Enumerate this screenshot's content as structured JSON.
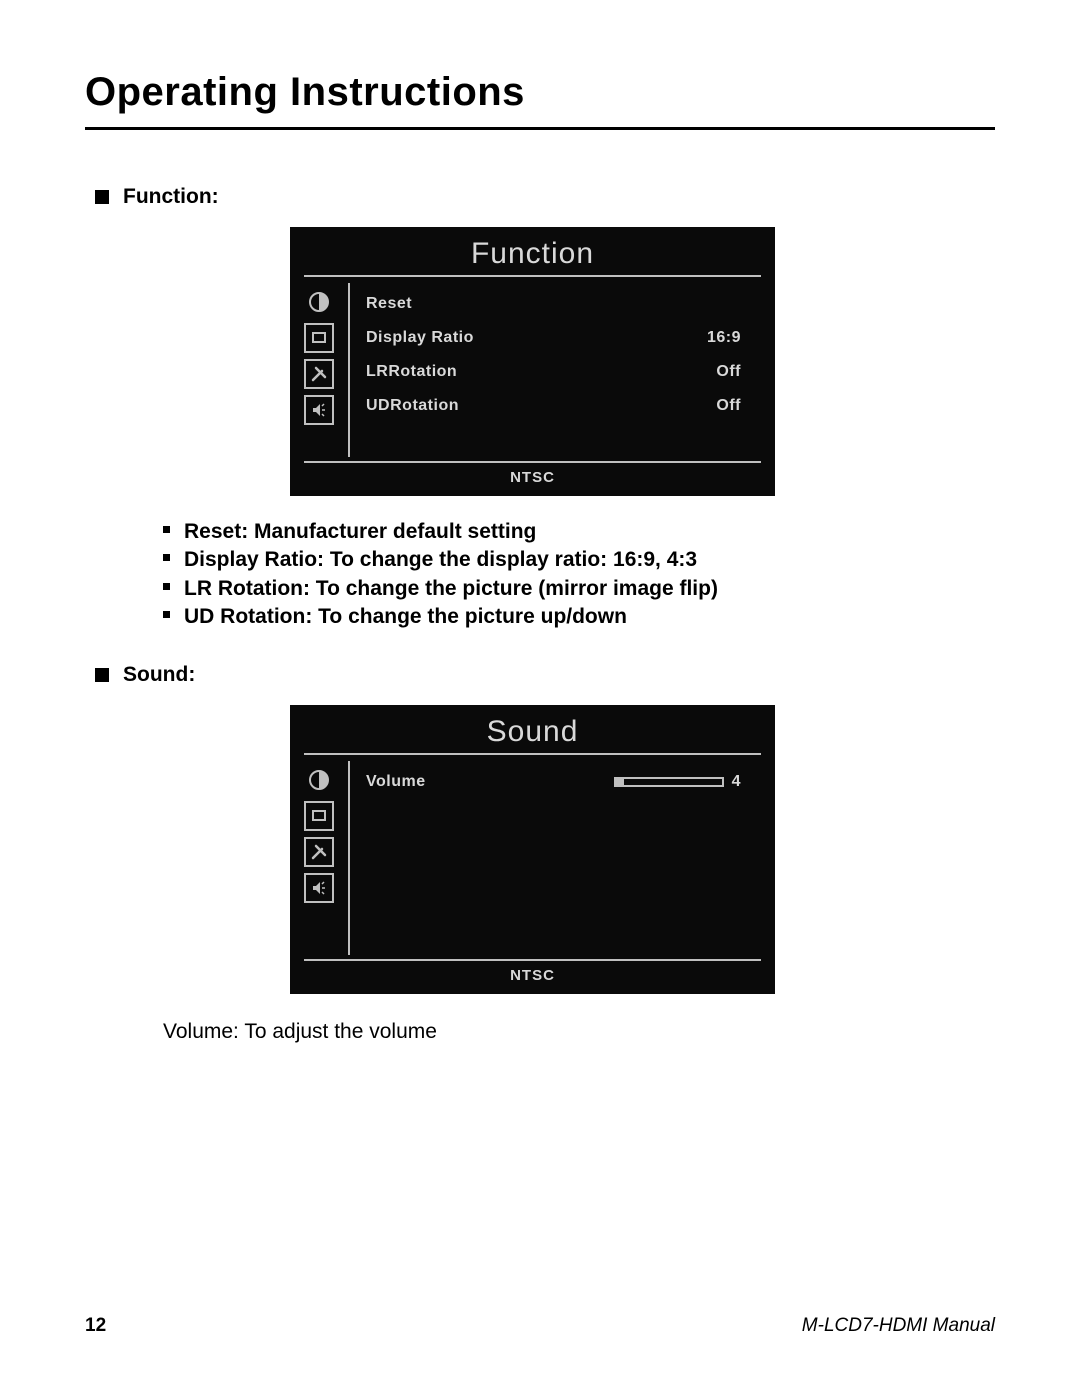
{
  "page": {
    "title": "Operating Instructions",
    "page_number": "12",
    "manual_name": "M-LCD7-HDMI Manual"
  },
  "function_section": {
    "heading": "Function:",
    "osd": {
      "title": "Function",
      "footer": "NTSC",
      "rows": [
        {
          "label": "Reset",
          "value": ""
        },
        {
          "label": "Display Ratio",
          "value": "16:9"
        },
        {
          "label": "LRRotation",
          "value": "Off"
        },
        {
          "label": "UDRotation",
          "value": "Off"
        }
      ]
    },
    "bullets": [
      "Reset: Manufacturer default setting",
      "Display Ratio: To change the display ratio: 16:9, 4:3",
      "LR Rotation: To change the picture (mirror image flip)",
      "UD Rotation: To change the picture up/down"
    ]
  },
  "sound_section": {
    "heading": "Sound:",
    "osd": {
      "title": "Sound",
      "footer": "NTSC",
      "volume_label": "Volume",
      "volume_value": "4",
      "volume_fill_percent": 8
    },
    "note": "Volume: To adjust the volume"
  },
  "icons": {
    "contrast": "contrast-icon",
    "display": "display-icon",
    "tools": "tools-icon",
    "sound": "sound-icon"
  },
  "colors": {
    "osd_bg": "#0a0a0a",
    "osd_fg": "#d9d9d9",
    "osd_line": "#c0c0c0",
    "page_bg": "#ffffff",
    "page_fg": "#000000"
  }
}
